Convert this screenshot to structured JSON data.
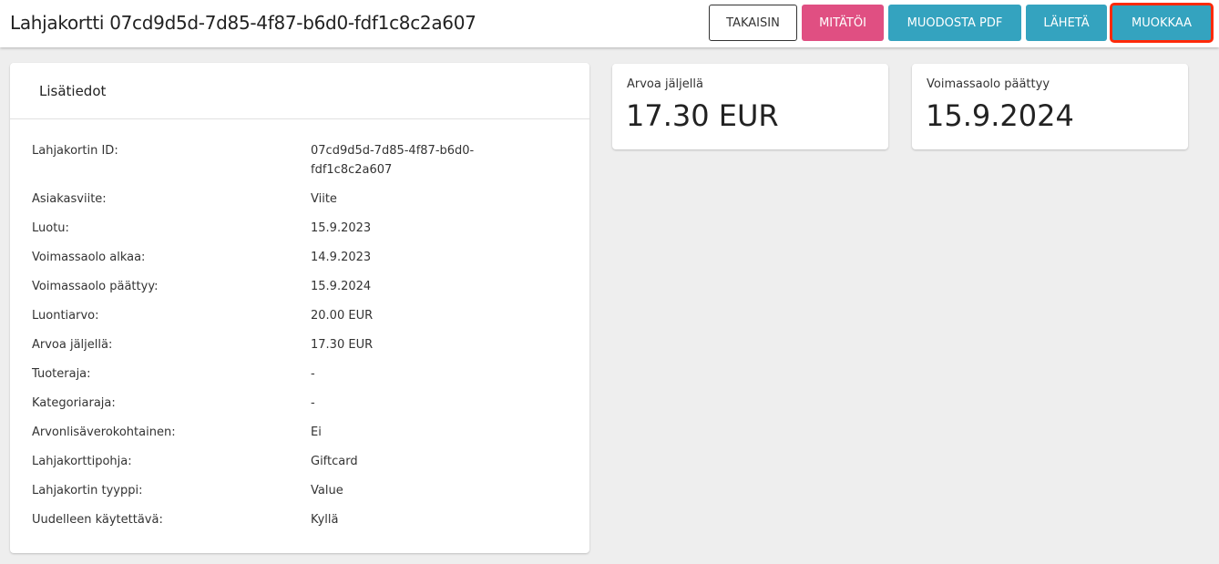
{
  "header": {
    "title": "Lahjakortti 07cd9d5d-7d85-4f87-b6d0-fdf1c8c2a607",
    "buttons": {
      "back": "TAKAISIN",
      "cancel": "MITÄTÖI",
      "pdf": "MUODOSTA PDF",
      "send": "LÄHETÄ",
      "edit": "MUOKKAA"
    }
  },
  "colors": {
    "cancel": "#e04f82",
    "primary": "#34a3bf",
    "highlight": "#ff2a0a"
  },
  "info": {
    "title": "Lisätiedot",
    "rows": [
      {
        "k": "Lahjakortin ID:",
        "v": "07cd9d5d-7d85-4f87-b6d0-fdf1c8c2a607"
      },
      {
        "k": "Asiakasviite:",
        "v": "Viite"
      },
      {
        "k": "Luotu:",
        "v": "15.9.2023"
      },
      {
        "k": "Voimassaolo alkaa:",
        "v": "14.9.2023"
      },
      {
        "k": "Voimassaolo päättyy:",
        "v": "15.9.2024"
      },
      {
        "k": "Luontiarvo:",
        "v": "20.00 EUR"
      },
      {
        "k": "Arvoa jäljellä:",
        "v": "17.30 EUR"
      },
      {
        "k": "Tuoteraja:",
        "v": "-"
      },
      {
        "k": "Kategoriaraja:",
        "v": "-"
      },
      {
        "k": "Arvonlisäverokohtainen:",
        "v": "Ei"
      },
      {
        "k": "Lahjakorttipohja:",
        "v": "Giftcard"
      },
      {
        "k": "Lahjakortin tyyppi:",
        "v": "Value"
      },
      {
        "k": "Uudelleen käytettävä:",
        "v": "Kyllä"
      }
    ]
  },
  "stats": [
    {
      "label": "Arvoa jäljellä",
      "value": "17.30 EUR"
    },
    {
      "label": "Voimassaolo päättyy",
      "value": "15.9.2024"
    }
  ]
}
